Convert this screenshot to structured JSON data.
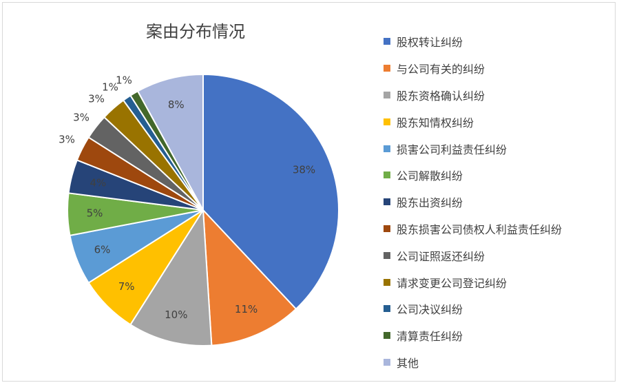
{
  "chart_data": {
    "type": "pie",
    "title": "案由分布情况",
    "legend_position": "right",
    "slices": [
      {
        "label": "股权转让纠纷",
        "value": 38,
        "display": "38%",
        "color": "#4472C4"
      },
      {
        "label": "与公司有关的纠纷",
        "value": 11,
        "display": "11%",
        "color": "#ED7D31"
      },
      {
        "label": "股东资格确认纠纷",
        "value": 10,
        "display": "10%",
        "color": "#A5A5A5"
      },
      {
        "label": "股东知情权纠纷",
        "value": 7,
        "display": "7%",
        "color": "#FFC000"
      },
      {
        "label": "损害公司利益责任纠纷",
        "value": 6,
        "display": "6%",
        "color": "#5B9BD5"
      },
      {
        "label": "公司解散纠纷",
        "value": 5,
        "display": "5%",
        "color": "#70AD47"
      },
      {
        "label": "股东出资纠纷",
        "value": 4,
        "display": "4%",
        "color": "#264478"
      },
      {
        "label": "股东损害公司债权人利益责任纠纷",
        "value": 3,
        "display": "3%",
        "color": "#9E480E"
      },
      {
        "label": "公司证照返还纠纷",
        "value": 3,
        "display": "3%",
        "color": "#636363"
      },
      {
        "label": "请求变更公司登记纠纷",
        "value": 3,
        "display": "3%",
        "color": "#997300"
      },
      {
        "label": "公司决议纠纷",
        "value": 1,
        "display": "1%",
        "color": "#255E91"
      },
      {
        "label": "清算责任纠纷",
        "value": 1,
        "display": "1%",
        "color": "#43682B"
      },
      {
        "label": "其他",
        "value": 8,
        "display": "8%",
        "color": "#A9B6DC"
      }
    ]
  }
}
